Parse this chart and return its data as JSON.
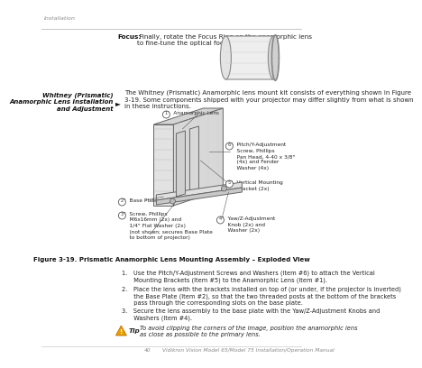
{
  "bg_color": "#ffffff",
  "header_text": "Installation",
  "focus_bold": "Focus:",
  "focus_normal": " Finally, rotate the Focus Ring on the anamorphic lens\nto fine-tune the optical focus.",
  "sidebar_title1": "Whitney (Prismatic)",
  "sidebar_title2": "Anamorphic Lens Installation",
  "sidebar_title3": "and Adjustment",
  "intro_text": "The Whitney (Prismatic) Anamorphic lens mount kit consists of everything shown in Figure\n3-19. Some components shipped with your projector may differ slightly from what is shown\nin these instructions.",
  "figure_caption": "Figure 3-19. Prismatic Anamorphic Lens Mounting Assembly – Exploded View",
  "step1": "1. Use the Pitch/Y-Adjustment Screws and Washers (Item #6) to attach the Vertical\n  Mounting Brackets (Item #5) to the Anamorphic Lens (Item #1).",
  "step2": "2. Place the lens with the brackets installed on top of (or under, if the projector is inverted)\n  the Base Plate (Item #2), so that the two threaded posts at the bottom of the brackets\n  pass through the corresponding slots on the base plate.",
  "step3": "3. Secure the lens assembly to the base plate with the Yaw/Z-Adjustment Knobs and\n  Washers (Item #4).",
  "tip_text": "To avoid clipping the corners of the image, position the anamorphic lens\nas close as possible to the primary lens.",
  "footer_page": "40",
  "footer_text": "Vidikron Vision Model 65/Model 75 Installation/Operation Manual",
  "label1": "1  Anamorphic Lens",
  "label2": "2  Base Plate",
  "label3_1": "3  Screw, Phillips",
  "label3_2": "    M6x16mm (2x) and",
  "label3_3": "    1/4\" Flat Washer (2x)",
  "label3_4": "    (not shown; secures Base Plate",
  "label3_5": "    to bottom of projector)",
  "label4_1": "4  Yaw/Z-Adjustment",
  "label4_2": "    Knob (2x) and",
  "label4_3": "    Washer (2x)",
  "label5_1": "5  Vertical Mounting",
  "label5_2": "    Bracket (2x)",
  "label6_1": "6  Pitch/Y-Adjustment",
  "label6_2": "    Screw, Phillips",
  "label6_3": "    Pan Head, 4-40 x 3/8\"",
  "label6_4": "    (4x) and Fender",
  "label6_5": "    Washer (4x)"
}
